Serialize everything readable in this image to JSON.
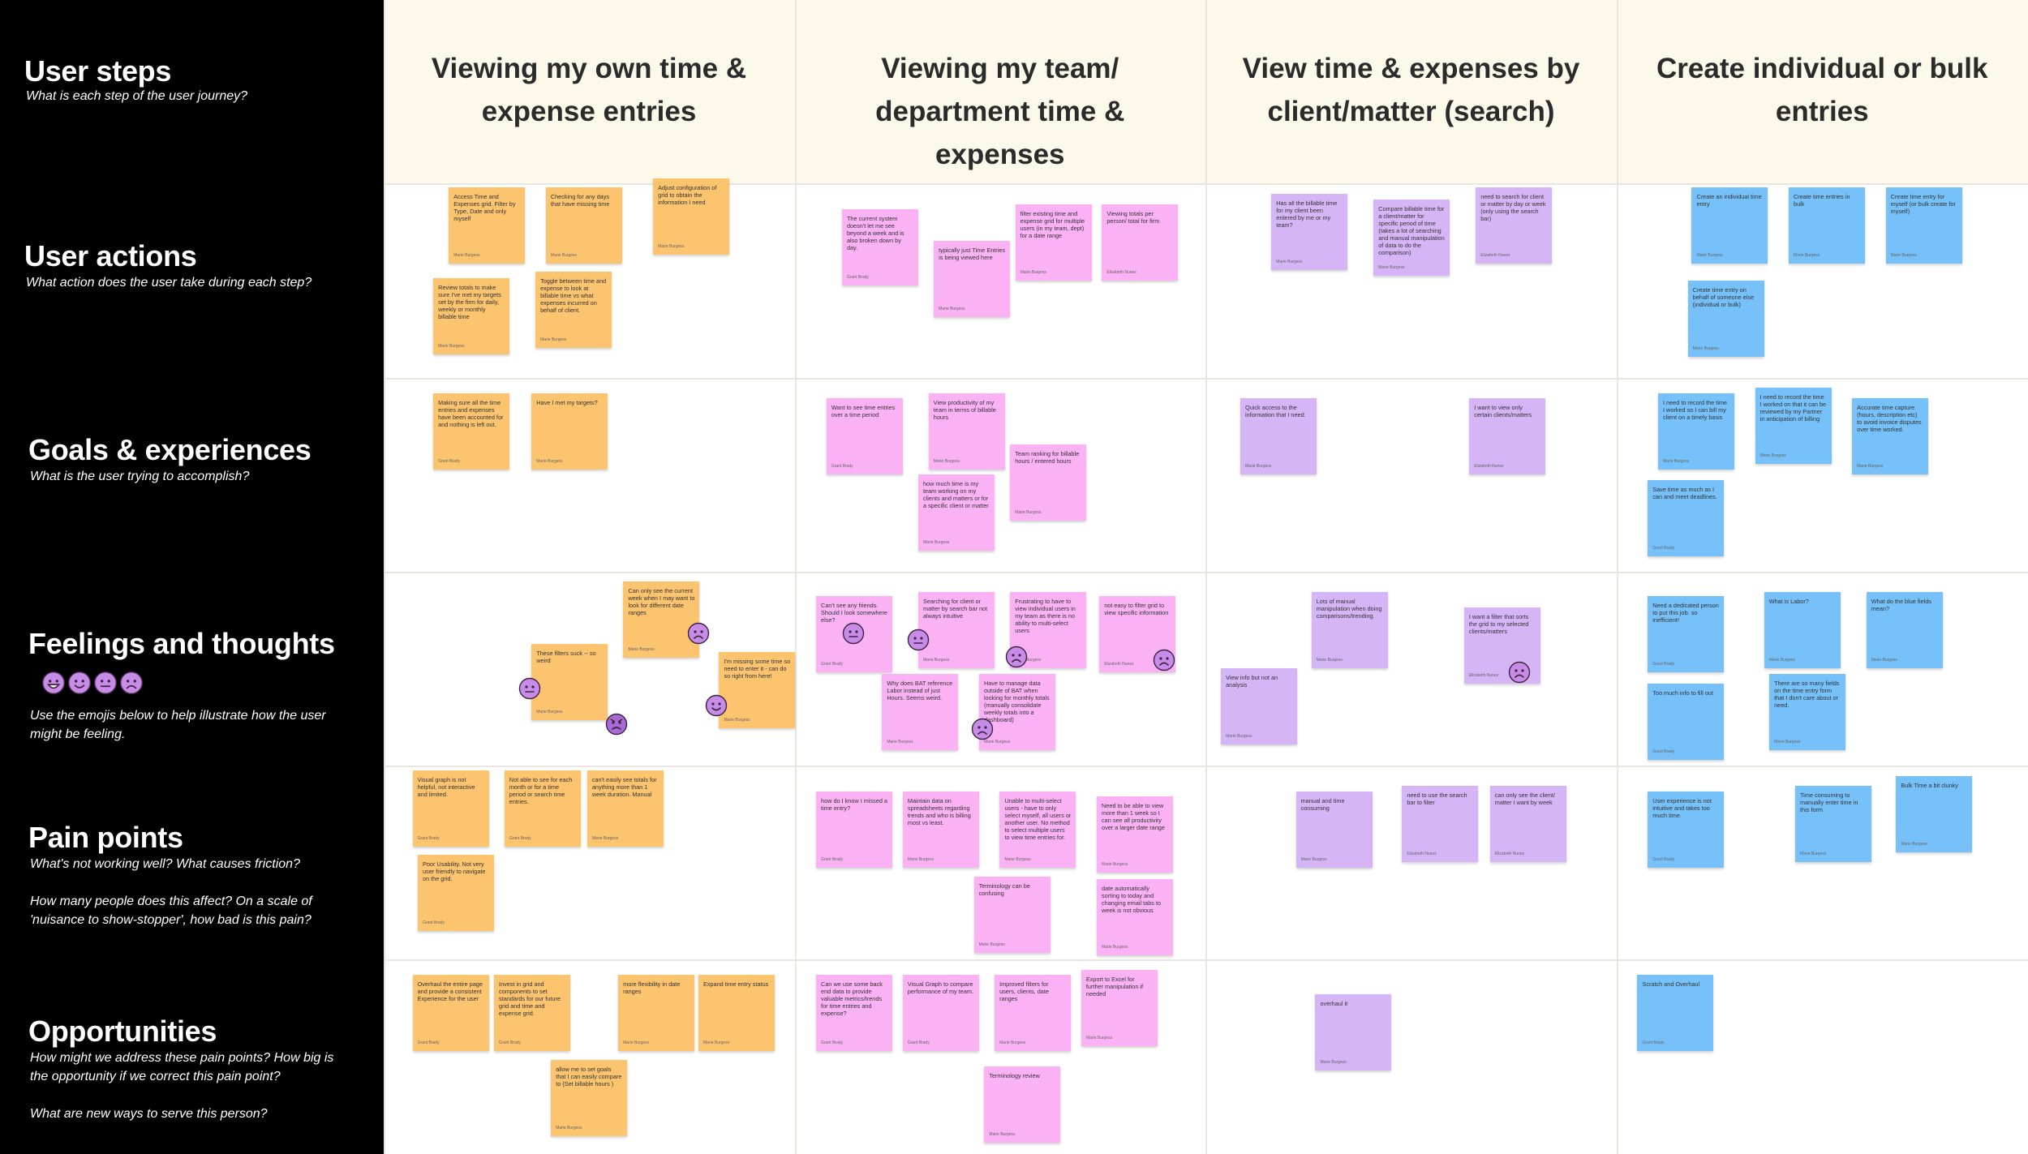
{
  "header": {
    "title": "User steps",
    "subtitle": [
      "What is each step of the user journey?"
    ]
  },
  "columns": [
    {
      "title": "Viewing my own time & expense entries",
      "note_color": "#fdc46f"
    },
    {
      "title": "Viewing my team/ department time & expenses",
      "note_color": "#fbb2f5"
    },
    {
      "title": "View time & expenses by client/matter (search)",
      "note_color": "#d6b5f7"
    },
    {
      "title": "Create individual or bulk entries",
      "note_color": "#76c1fa"
    }
  ],
  "rows": [
    {
      "title": "User actions",
      "subtitle": [
        "What action does the user take during each step?"
      ],
      "cells": [
        [
          {
            "text": "Access Time and Expenses grid. Filter by Type, Date and only myself",
            "author": "Marie Burgess"
          },
          {
            "text": "Checking for any days that have missing time",
            "author": "Marie Burgess"
          },
          {
            "text": "Adjust configuration of grid to obtain the information I need",
            "author": "Marie Burgess"
          },
          {
            "text": "Review totals to make sure I've met my targets set by the firm for daily, weekly or monthly billable time",
            "author": "Marie Burgess"
          },
          {
            "text": "Toggle between time and expense to look at billable time vs what expenses incurred on behalf of client.",
            "author": "Marie Burgess"
          }
        ],
        [
          {
            "text": "The current system doesn't let me see beyond a week and is also broken down by day.",
            "author": "Grant Brady"
          },
          {
            "text": "typically just Time Entries is being viewed here",
            "author": "Marie Burgess"
          },
          {
            "text": "filter existing time and expense grid for multiple users (in my team, dept) for a date range",
            "author": "Marie Burgess"
          },
          {
            "text": "Viewing totals per person/ total for firm",
            "author": "Elizabeth Nunez"
          }
        ],
        [
          {
            "text": "Has all the billable time for my client been entered by me or my team?",
            "author": "Marie Burgess"
          },
          {
            "text": "Compare billable time for a client/matter for specific period of time (takes a lot of searching and manual manipulation of data to do the comparison)",
            "author": "Marie Burgess"
          },
          {
            "text": "need to search for client or matter by day or week (only using the search bar)",
            "author": "Elizabeth Nunez"
          }
        ],
        [
          {
            "text": "Create an individual time entry",
            "author": "Marie Burgess"
          },
          {
            "text": "Create time entries in bulk",
            "author": "Marie Burgess"
          },
          {
            "text": "Create time entry for myself (or bulk create for myself)",
            "author": "Marie Burgess"
          },
          {
            "text": "Create time entry on behalf of someone else (individual or bulk)",
            "author": "Marie Burgess"
          }
        ]
      ]
    },
    {
      "title": "Goals & experiences",
      "subtitle": [
        "What is the user trying to accomplish?"
      ],
      "cells": [
        [
          {
            "text": "Making sure all the time entries and expenses have been accounted for and nothing is left out.",
            "author": "Grant Brady"
          },
          {
            "text": "Have I met my targets?",
            "author": "Marie Burgess"
          }
        ],
        [
          {
            "text": "Want to see time entries over a time period",
            "author": "Grant Brady"
          },
          {
            "text": "View productivity of my team in terms of billable hours",
            "author": "Marie Burgess"
          },
          {
            "text": "Team ranking for billable hours / entered hours",
            "author": "Marie Burgess"
          },
          {
            "text": "how much time is my team working on my clients and matters or for a specific client or matter",
            "author": "Marie Burgess"
          }
        ],
        [
          {
            "text": "Quick access to the information that I need.",
            "author": "Marie Burgess"
          },
          {
            "text": "I want to view only certain clients/matters",
            "author": "Elizabeth Nunez"
          }
        ],
        [
          {
            "text": "I need to record the time I worked so I can bill my client on a timely basis",
            "author": "Marie Burgess"
          },
          {
            "text": "I need to record the time I worked on that it can be reviewed by my Partner in anticipation of billing",
            "author": "Marie Burgess"
          },
          {
            "text": "Accurate time capture (hours, description etc) to avoid invoice disputes over time worked.",
            "author": "Marie Burgess"
          },
          {
            "text": "Save time as much as I can and meet deadlines.",
            "author": "Grant Brady"
          }
        ]
      ]
    },
    {
      "title": "Feelings and thoughts",
      "subtitle": [
        "Use the emojis below to help illustrate how the user might be feeling."
      ],
      "cells": [
        [
          {
            "text": "Can only see the current week when I may want to look for different date ranges",
            "author": "Marie Burgess"
          },
          {
            "text": "These filters suck -- so weird",
            "author": "Marie Burgess"
          },
          {
            "text": "I'm missing some time so need to enter it - can do so right from here!",
            "author": "Marie Burgess"
          }
        ],
        [
          {
            "text": "Can't see any friends. Should I look somewhere else?",
            "author": "Grant Brady"
          },
          {
            "text": "Searching for client or matter by search bar not always intuitive",
            "author": "Marie Burgess"
          },
          {
            "text": "Frustrating to have to view individual users in my team as there is no ability to multi-select users",
            "author": "Marie Burgess"
          },
          {
            "text": "not easy to filter grid to view specific information",
            "author": "Elizabeth Nunez"
          },
          {
            "text": "Why does BAT reference Labor instead of just Hours. Seems weird.",
            "author": "Marie Burgess"
          },
          {
            "text": "Have to manage data outside of BAT when looking for monthly totals (manually consolidate weekly totals into a dashboard)",
            "author": "Marie Burgess"
          }
        ],
        [
          {
            "text": "Lots of manual manipulation when doing comparisons/trending.",
            "author": "Marie Burgess"
          },
          {
            "text": "I want a filter that sorts the grid to my selected clients/matters",
            "author": "Elizabeth Nunez"
          },
          {
            "text": "View info but not an analysis",
            "author": "Marie Burgess"
          }
        ],
        [
          {
            "text": "Need a dedicated person to put this job. so inefficient!",
            "author": "Grant Brady"
          },
          {
            "text": "What is Labor?",
            "author": "Marie Burgess"
          },
          {
            "text": "What do the blue fields mean?",
            "author": "Marie Burgess"
          },
          {
            "text": "There are so many fields on the time entry form that I don't care about or need.",
            "author": "Marie Burgess"
          },
          {
            "text": "Too much info to fill out",
            "author": "Grant Brady"
          }
        ]
      ]
    },
    {
      "title": "Pain points",
      "subtitle": [
        "What's not working well? What causes friction?",
        "How many people does this affect? On a scale of 'nuisance to show-stopper', how bad is this pain?"
      ],
      "cells": [
        [
          {
            "text": "Visual graph is not helpful, not interactive and limited.",
            "author": "Grant Brady"
          },
          {
            "text": "Not able to see for each month or for a time period or search time entries.",
            "author": "Grant Brady"
          },
          {
            "text": "can't easily see totals for anything more than 1 week duration. Manual",
            "author": "Marie Burgess"
          },
          {
            "text": "Poor Usability. Not very user friendly to navigate on the grid.",
            "author": "Grant Brady"
          }
        ],
        [
          {
            "text": "how do I know I missed a time entry?",
            "author": "Grant Brady"
          },
          {
            "text": "Maintain data on spreadsheets regarding trends and who is billing most vs least.",
            "author": "Marie Burgess"
          },
          {
            "text": "Unable to multi-select users - have to only select myself, all users or another user. No method to select multiple users to view time entries for.",
            "author": "Marie Burgess"
          },
          {
            "text": "Need to be able to view more than 1 week so I can see all productivity over a larger date range",
            "author": "Marie Burgess"
          },
          {
            "text": "Terminology can be confusing",
            "author": "Marie Burgess"
          },
          {
            "text": "date automatically sorting to today and changing email tabs to week is not obvious",
            "author": "Marie Burgess"
          }
        ],
        [
          {
            "text": "manual and time consuming",
            "author": "Marie Burgess"
          },
          {
            "text": "need to use the search bar to filter",
            "author": "Elizabeth Nunez"
          },
          {
            "text": "can only see the client/ matter I want by week",
            "author": "Elizabeth Nunez"
          }
        ],
        [
          {
            "text": "User experience is not intuitive and takes too much time.",
            "author": "Grant Brady"
          },
          {
            "text": "Time consuming to manually enter time in this form",
            "author": "Marie Burgess"
          },
          {
            "text": "Bulk Time a bit clunky",
            "author": "Marie Burgess"
          }
        ]
      ]
    },
    {
      "title": "Opportunities",
      "subtitle": [
        "How might we address these pain points? How big is the opportunity if we correct this pain point?",
        "What are new ways to serve this person?"
      ],
      "cells": [
        [
          {
            "text": "Overhaul the entire page and provide a consistent Experience for the user",
            "author": "Grant Brady"
          },
          {
            "text": "Invest in grid and components to set standards for our future grid and time and expense grid.",
            "author": "Grant Brady"
          },
          {
            "text": "more flexibility in date ranges",
            "author": "Marie Burgess"
          },
          {
            "text": "Expand time entry status",
            "author": "Marie Burgess"
          },
          {
            "text": "allow me to set goals that I can easily compare to (Set billable hours )",
            "author": "Marie Burgess"
          }
        ],
        [
          {
            "text": "Can we use some back end data to provide valuable metrics/trends for time entries and expense?",
            "author": "Grant Brady"
          },
          {
            "text": "Visual Graph to compare performance of my team.",
            "author": "Grant Brady"
          },
          {
            "text": "Improved filters for users, clients, date ranges",
            "author": "Marie Burgess"
          },
          {
            "text": "Export to Excel for further manipulation if needed",
            "author": "Marie Burgess"
          },
          {
            "text": "Terminology review",
            "author": "Marie Burgess"
          }
        ],
        [
          {
            "text": "overhaul it",
            "author": "Marie Burgess"
          }
        ],
        [
          {
            "text": "Scratch and Overhaul",
            "author": "Grant Brady"
          }
        ]
      ]
    }
  ]
}
